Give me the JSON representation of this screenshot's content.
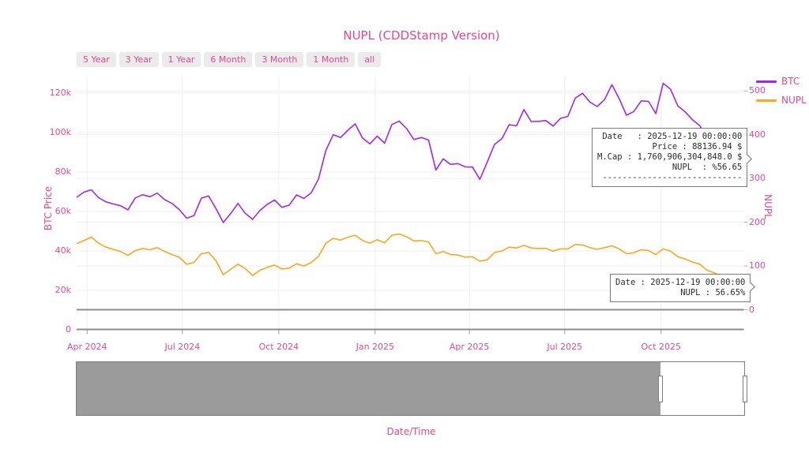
{
  "title": "NUPL (CDDStamp Version)",
  "range_buttons": [
    "5 Year",
    "3 Year",
    "1 Year",
    "6 Month",
    "3 Month",
    "1 Month",
    "all"
  ],
  "legend": [
    {
      "label": "BTC",
      "color": "#a227ee"
    },
    {
      "label": "NUPL",
      "color": "#ffa51e"
    }
  ],
  "axes": {
    "left_title": "BTC Price",
    "right_title": "NUPL",
    "x_title": "Date/Time",
    "left_ticks": [
      {
        "label": "0",
        "value": 0
      },
      {
        "label": "20k",
        "value": 20000
      },
      {
        "label": "40k",
        "value": 40000
      },
      {
        "label": "60k",
        "value": 60000
      },
      {
        "label": "80k",
        "value": 80000
      },
      {
        "label": "100k",
        "value": 100000
      },
      {
        "label": "120k",
        "value": 120000
      }
    ],
    "right_ticks": [
      {
        "label": "0",
        "value": 0
      },
      {
        "label": "100",
        "value": 100
      },
      {
        "label": "200",
        "value": 200
      },
      {
        "label": "300",
        "value": 300
      },
      {
        "label": "400",
        "value": 400
      },
      {
        "label": "500",
        "value": 500
      }
    ],
    "x_ticks": [
      {
        "label": "Apr 2024",
        "date": "2024-04-01"
      },
      {
        "label": "Jul 2024",
        "date": "2024-07-01"
      },
      {
        "label": "Oct 2024",
        "date": "2024-10-01"
      },
      {
        "label": "Jan 2025",
        "date": "2025-01-01"
      },
      {
        "label": "Apr 2025",
        "date": "2025-04-01"
      },
      {
        "label": "Jul 2025",
        "date": "2025-07-01"
      },
      {
        "label": "Oct 2025",
        "date": "2025-10-01"
      }
    ]
  },
  "tooltip_main": {
    "lines": [
      "Date   : 2025-12-19 00:00:00",
      "Price : 88136.94 $",
      "M.Cap : 1,760,906,304,848.0 $",
      "NUPL  : %56.65",
      "----------------------------"
    ]
  },
  "tooltip_nupl": {
    "lines": [
      "Date : 2025-12-19 00:00:00",
      "NUPL : 56.65%"
    ]
  },
  "colors": {
    "accent_pink": "#e8468f",
    "btc_purple": "#a227ee",
    "nupl_orange": "#ffa51e",
    "slider_gray": "#9b9b9b",
    "zero_line_gray": "#8c8c8c",
    "grid_line": "#f0edef"
  },
  "chart_data": {
    "type": "line",
    "title": "NUPL (CDDStamp Version)",
    "xlabel": "Date/Time",
    "ylabel_left": "BTC Price",
    "ylabel_right": "NUPL",
    "grid": true,
    "legend_position": "top-right",
    "x_range": {
      "start": "2024-03-22",
      "end": "2025-12-19"
    },
    "left_axis_zero_at_bottom": true,
    "hover_point": {
      "date": "2025-12-19 00:00:00",
      "btc_price": 88136.94,
      "market_cap": "1,760,906,304,848.0",
      "nupl_pct": 56.65
    },
    "dates": [
      "2024-03-22",
      "2024-03-29",
      "2024-04-05",
      "2024-04-12",
      "2024-04-19",
      "2024-04-26",
      "2024-05-03",
      "2024-05-10",
      "2024-05-17",
      "2024-05-24",
      "2024-05-31",
      "2024-06-07",
      "2024-06-14",
      "2024-06-21",
      "2024-06-28",
      "2024-07-05",
      "2024-07-12",
      "2024-07-19",
      "2024-07-26",
      "2024-08-02",
      "2024-08-09",
      "2024-08-16",
      "2024-08-23",
      "2024-08-30",
      "2024-09-06",
      "2024-09-13",
      "2024-09-20",
      "2024-09-27",
      "2024-10-04",
      "2024-10-11",
      "2024-10-18",
      "2024-10-25",
      "2024-11-01",
      "2024-11-08",
      "2024-11-15",
      "2024-11-22",
      "2024-11-29",
      "2024-12-06",
      "2024-12-13",
      "2024-12-20",
      "2024-12-27",
      "2025-01-03",
      "2025-01-10",
      "2025-01-17",
      "2025-01-24",
      "2025-01-31",
      "2025-02-07",
      "2025-02-14",
      "2025-02-21",
      "2025-02-28",
      "2025-03-07",
      "2025-03-14",
      "2025-03-21",
      "2025-03-28",
      "2025-04-04",
      "2025-04-11",
      "2025-04-18",
      "2025-04-25",
      "2025-05-02",
      "2025-05-09",
      "2025-05-16",
      "2025-05-23",
      "2025-05-30",
      "2025-06-06",
      "2025-06-13",
      "2025-06-20",
      "2025-06-27",
      "2025-07-04",
      "2025-07-11",
      "2025-07-18",
      "2025-07-25",
      "2025-08-01",
      "2025-08-08",
      "2025-08-15",
      "2025-08-22",
      "2025-08-29",
      "2025-09-05",
      "2025-09-12",
      "2025-09-19",
      "2025-09-26",
      "2025-10-03",
      "2025-10-10",
      "2025-10-17",
      "2025-10-24",
      "2025-10-31",
      "2025-11-07",
      "2025-11-14",
      "2025-11-21",
      "2025-11-28",
      "2025-12-05",
      "2025-12-12",
      "2025-12-19"
    ],
    "series": [
      {
        "name": "BTC",
        "axis": "left",
        "color": "#a227ee",
        "values": [
          67200,
          69800,
          71000,
          67000,
          64900,
          63800,
          62900,
          60800,
          66900,
          68500,
          67500,
          69300,
          66000,
          64100,
          61000,
          56600,
          57900,
          66700,
          67900,
          61500,
          54400,
          58900,
          64100,
          59100,
          56000,
          60500,
          63600,
          65800,
          62100,
          63200,
          68400,
          66600,
          69500,
          76500,
          91000,
          98900,
          97500,
          101200,
          104400,
          97200,
          94300,
          98200,
          94600,
          104100,
          105800,
          102100,
          96500,
          97500,
          96200,
          81000,
          86700,
          83900,
          84300,
          82600,
          82500,
          76300,
          85000,
          94000,
          96900,
          104000,
          103400,
          111700,
          105600,
          105700,
          106100,
          103300,
          107200,
          108200,
          117500,
          119900,
          115500,
          113200,
          116700,
          124300,
          117200,
          108800,
          110700,
          116100,
          115800,
          109600,
          125000,
          122000,
          113500,
          110500,
          106500,
          103500,
          97000,
          93000,
          90500,
          91500,
          87500,
          88136.94
        ]
      },
      {
        "name": "NUPL",
        "axis": "right",
        "color": "#ffa51e",
        "values": [
          151,
          158,
          166,
          152,
          143,
          138,
          133,
          124,
          135,
          140,
          137,
          142,
          133,
          126,
          120,
          104,
          108,
          128,
          131,
          112,
          80,
          92,
          104,
          94,
          78,
          90,
          97,
          102,
          93,
          95,
          105,
          100,
          108,
          122,
          152,
          163,
          159,
          166,
          170,
          158,
          152,
          160,
          153,
          170,
          173,
          167,
          157,
          158,
          155,
          128,
          133,
          126,
          125,
          120,
          121,
          111,
          114,
          131,
          134,
          143,
          141,
          147,
          141,
          140,
          140,
          134,
          139,
          139,
          149,
          148,
          142,
          138,
          142,
          146,
          139,
          128,
          130,
          137,
          135,
          126,
          139,
          134,
          121,
          116,
          109,
          104,
          90,
          84,
          76,
          70,
          64,
          56.65
        ]
      }
    ]
  }
}
